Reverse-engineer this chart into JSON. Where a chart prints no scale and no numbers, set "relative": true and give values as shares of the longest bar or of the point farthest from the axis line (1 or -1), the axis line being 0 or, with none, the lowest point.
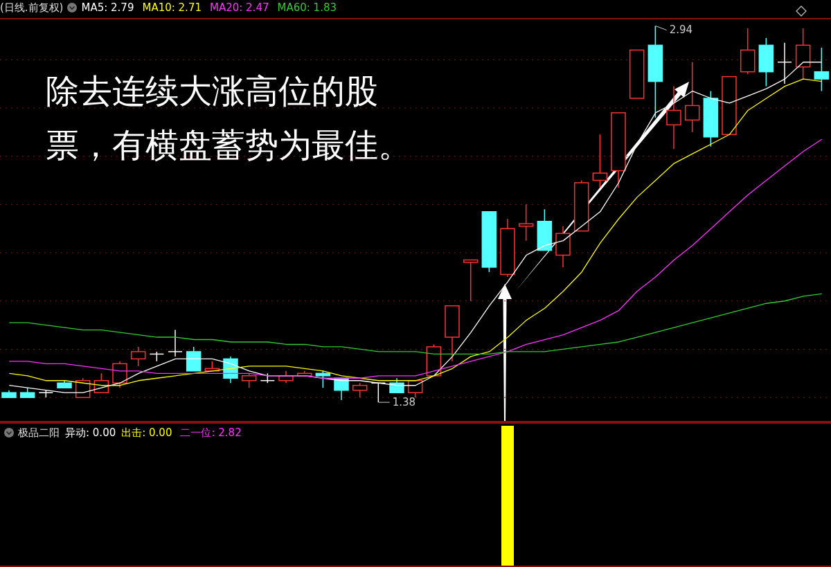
{
  "chart_data": [
    {
      "type": "candlestick",
      "title": "(日线.前复权)",
      "categories": [
        null,
        null,
        null,
        null,
        null,
        null,
        null,
        null,
        null,
        null,
        null,
        null,
        null,
        null,
        null,
        null,
        null,
        null,
        null,
        null,
        null,
        null,
        null,
        null,
        null,
        null,
        null,
        null,
        null,
        null,
        null,
        null,
        null,
        null,
        null,
        null,
        null,
        null,
        null,
        null,
        null,
        null,
        null,
        null,
        null
      ],
      "ohlc": [
        [
          1.42,
          1.43,
          1.4,
          1.4
        ],
        [
          1.42,
          1.44,
          1.4,
          1.4
        ],
        [
          1.42,
          1.43,
          1.4,
          1.42
        ],
        [
          1.46,
          1.47,
          1.44,
          1.44
        ],
        [
          1.4,
          1.48,
          1.4,
          1.47
        ],
        [
          1.42,
          1.5,
          1.42,
          1.47
        ],
        [
          1.46,
          1.55,
          1.44,
          1.54
        ],
        [
          1.56,
          1.61,
          1.53,
          1.59
        ],
        [
          1.58,
          1.59,
          1.55,
          1.58
        ],
        [
          1.59,
          1.68,
          1.57,
          1.59
        ],
        [
          1.59,
          1.61,
          1.51,
          1.51
        ],
        [
          1.51,
          1.55,
          1.51,
          1.52
        ],
        [
          1.56,
          1.57,
          1.46,
          1.48
        ],
        [
          1.47,
          1.5,
          1.44,
          1.49
        ],
        [
          1.47,
          1.5,
          1.46,
          1.47
        ],
        [
          1.47,
          1.51,
          1.46,
          1.49
        ],
        [
          1.49,
          1.51,
          1.49,
          1.5
        ],
        [
          1.5,
          1.51,
          1.44,
          1.49
        ],
        [
          1.48,
          1.48,
          1.39,
          1.43
        ],
        [
          1.43,
          1.46,
          1.4,
          1.45
        ],
        [
          1.46,
          1.46,
          1.38,
          1.46
        ],
        [
          1.46,
          1.48,
          1.42,
          1.42
        ],
        [
          1.42,
          1.47,
          1.4,
          1.47
        ],
        [
          1.49,
          1.62,
          1.49,
          1.61
        ],
        [
          1.65,
          1.78,
          1.55,
          1.78
        ],
        [
          1.96,
          1.97,
          1.8,
          1.97
        ],
        [
          2.17,
          2.17,
          1.92,
          1.94
        ],
        [
          1.91,
          2.14,
          1.9,
          2.1
        ],
        [
          2.11,
          2.2,
          2.05,
          2.12
        ],
        [
          2.13,
          2.18,
          2.01,
          2.01
        ],
        [
          1.99,
          2.11,
          1.94,
          2.08
        ],
        [
          2.09,
          2.3,
          2.09,
          2.29
        ],
        [
          2.3,
          2.49,
          2.27,
          2.33
        ],
        [
          2.34,
          2.58,
          2.27,
          2.58
        ],
        [
          2.64,
          2.84,
          2.64,
          2.84
        ],
        [
          2.86,
          2.94,
          2.56,
          2.71
        ],
        [
          2.53,
          2.69,
          2.43,
          2.59
        ],
        [
          2.55,
          2.79,
          2.5,
          2.61
        ],
        [
          2.64,
          2.67,
          2.44,
          2.48
        ],
        [
          2.49,
          2.73,
          2.49,
          2.73
        ],
        [
          2.75,
          2.93,
          2.74,
          2.84
        ],
        [
          2.86,
          2.89,
          2.69,
          2.75
        ],
        [
          2.79,
          2.87,
          2.7,
          2.79
        ],
        [
          2.77,
          2.93,
          2.72,
          2.86
        ],
        [
          2.75,
          2.85,
          2.67,
          2.72
        ]
      ],
      "colors": [
        "#54ffff",
        "#54ffff",
        "#ffffff",
        "#54ffff",
        "#ff3232",
        "#ff3232",
        "#ff3232",
        "#ff3232",
        "#ffffff",
        "#ffffff",
        "#54ffff",
        "#ff3232",
        "#54ffff",
        "#ff3232",
        "#ffffff",
        "#ff3232",
        "#ff3232",
        "#54ffff",
        "#54ffff",
        "#ff3232",
        "#ffffff",
        "#54ffff",
        "#ff3232",
        "#ff3232",
        "#ff3232",
        "#ff3232",
        "#54ffff",
        "#ff3232",
        "#ff3232",
        "#54ffff",
        "#ff3232",
        "#ff3232",
        "#ff3232",
        "#ff3232",
        "#ff3232",
        "#54ffff",
        "#ff3232",
        "#ff3232",
        "#54ffff",
        "#ff3232",
        "#ff3232",
        "#54ffff",
        "#ffffff",
        "#ff3232",
        "#54ffff"
      ],
      "series": [
        {
          "type": "line",
          "name": "MA5: 2.79",
          "color": "#ffffff",
          "values": [
            1.45,
            1.44,
            1.43,
            1.42,
            1.42,
            1.44,
            1.46,
            1.5,
            1.53,
            1.56,
            1.56,
            1.56,
            1.54,
            1.51,
            1.49,
            1.49,
            1.49,
            1.48,
            1.47,
            1.47,
            1.46,
            1.45,
            1.45,
            1.49,
            1.57,
            1.67,
            1.78,
            1.88,
            1.99,
            2.03,
            2.05,
            2.11,
            2.17,
            2.29,
            2.45,
            2.58,
            2.62,
            2.67,
            2.64,
            2.62,
            2.65,
            2.68,
            2.72,
            2.79,
            2.79
          ]
        },
        {
          "type": "line",
          "name": "MA10: 2.71",
          "color": "#ffff00",
          "values": [
            1.5,
            1.49,
            1.47,
            1.47,
            1.46,
            1.45,
            1.45,
            1.47,
            1.48,
            1.49,
            1.5,
            1.51,
            1.52,
            1.53,
            1.53,
            1.53,
            1.52,
            1.51,
            1.49,
            1.48,
            1.47,
            1.47,
            1.47,
            1.49,
            1.52,
            1.57,
            1.59,
            1.65,
            1.72,
            1.77,
            1.84,
            1.92,
            2.04,
            2.14,
            2.23,
            2.3,
            2.37,
            2.41,
            2.45,
            2.49,
            2.59,
            2.64,
            2.69,
            2.72,
            2.71
          ]
        },
        {
          "type": "line",
          "name": "MA20: 2.47",
          "color": "#ff33ff",
          "values": [
            1.55,
            1.55,
            1.54,
            1.54,
            1.53,
            1.52,
            1.51,
            1.51,
            1.5,
            1.5,
            1.5,
            1.5,
            1.5,
            1.5,
            1.49,
            1.49,
            1.49,
            1.48,
            1.48,
            1.48,
            1.49,
            1.49,
            1.49,
            1.51,
            1.53,
            1.55,
            1.57,
            1.59,
            1.62,
            1.64,
            1.66,
            1.69,
            1.72,
            1.76,
            1.84,
            1.9,
            1.97,
            2.03,
            2.1,
            2.17,
            2.24,
            2.3,
            2.36,
            2.42,
            2.47
          ]
        },
        {
          "type": "line",
          "name": "MA60: 1.83",
          "color": "#33cc33",
          "values": [
            1.71,
            1.71,
            1.7,
            1.69,
            1.68,
            1.68,
            1.67,
            1.66,
            1.65,
            1.65,
            1.64,
            1.64,
            1.63,
            1.63,
            1.63,
            1.62,
            1.62,
            1.61,
            1.61,
            1.6,
            1.59,
            1.59,
            1.59,
            1.58,
            1.58,
            1.58,
            1.58,
            1.59,
            1.59,
            1.59,
            1.6,
            1.61,
            1.62,
            1.63,
            1.65,
            1.67,
            1.69,
            1.71,
            1.73,
            1.75,
            1.77,
            1.79,
            1.8,
            1.82,
            1.83
          ]
        }
      ],
      "ylim": [
        1.3,
        2.97
      ],
      "yticks": [
        {
          "value": 1.4,
          "label": null
        },
        {
          "value": 1.6,
          "label": null
        },
        {
          "value": 1.8,
          "label": null
        },
        {
          "value": 2.0,
          "label": null
        },
        {
          "value": 2.2,
          "label": null
        },
        {
          "value": 2.4,
          "label": null
        },
        {
          "value": 2.6,
          "label": null
        },
        {
          "value": 2.8,
          "label": null
        }
      ],
      "grid": "y",
      "tick_labels": false,
      "legend": "top left",
      "marker": "none",
      "annotations": [
        "除去连续大涨高位的股票，有横盘蓄势为最佳。",
        "2.94",
        "1.38"
      ]
    },
    {
      "type": "bar",
      "title": "极品二阳",
      "relative": true,
      "tick_labels": false,
      "categories": [
        null,
        null,
        null,
        null,
        null,
        null,
        null,
        null,
        null,
        null,
        null,
        null,
        null,
        null,
        null,
        null,
        null,
        null,
        null,
        null,
        null,
        null,
        null,
        null,
        null,
        null,
        null,
        null,
        null,
        null,
        null,
        null,
        null,
        null,
        null,
        null,
        null,
        null,
        null,
        null,
        null,
        null,
        null,
        null,
        null
      ],
      "series": [
        {
          "name": "出击: 0.00",
          "color": "#ffff00",
          "values": [
            null,
            null,
            null,
            null,
            null,
            null,
            null,
            null,
            null,
            null,
            null,
            null,
            null,
            null,
            null,
            null,
            null,
            null,
            null,
            null,
            null,
            null,
            null,
            null,
            null,
            null,
            null,
            1,
            null,
            null,
            null,
            null,
            null,
            null,
            null,
            null,
            null,
            null,
            null,
            null,
            null,
            null,
            null,
            null,
            null
          ]
        }
      ],
      "annotations": [
        "异动: 0.00",
        "二一位: 2.82"
      ]
    }
  ]
}
